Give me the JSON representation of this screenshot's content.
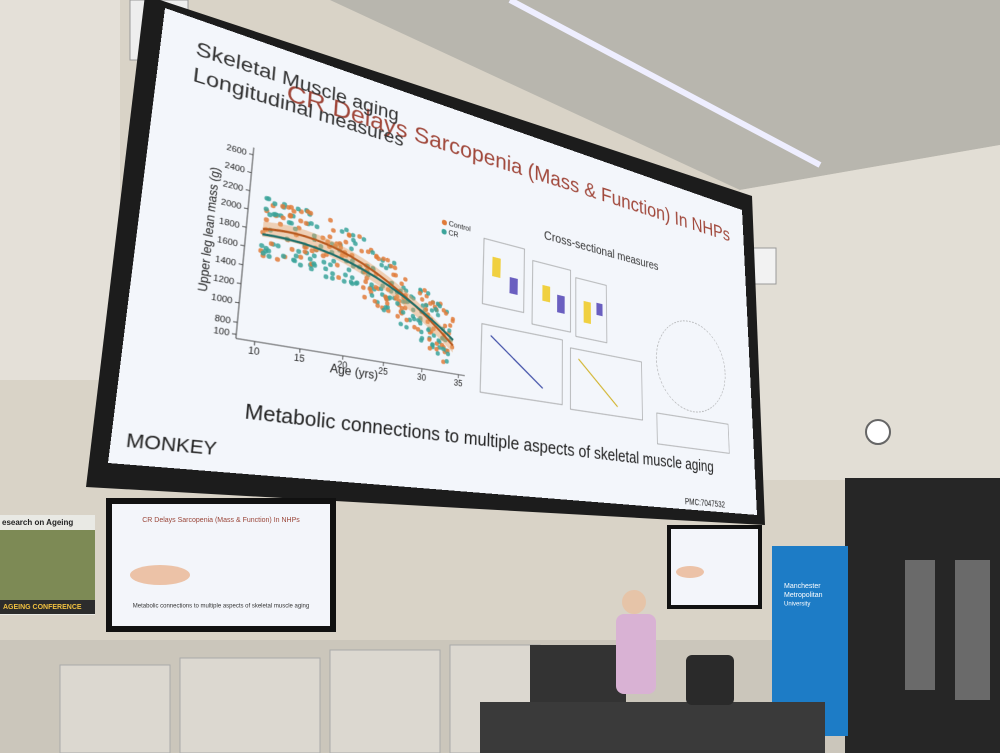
{
  "slide": {
    "title": "CR Delays Sarcopenia (Mass & Function) In NHPs",
    "heading": [
      "Skeletal Muscle aging",
      "Longitudinal measures"
    ],
    "subheading": "Cross-sectional measures",
    "caption": "Metabolic connections to multiple aspects of skeletal muscle aging",
    "label": "MONKEY",
    "reference": "PMC:7047532",
    "chart": {
      "x_label": "Age (yrs)",
      "y_label": "Upper leg lean mass (g)",
      "legend": [
        "Control",
        "CR"
      ],
      "xticks": [
        10,
        15,
        20,
        25,
        30,
        35
      ],
      "yticks": [
        100,
        800,
        1000,
        1200,
        1400,
        1600,
        1800,
        2000,
        2200,
        2400,
        2600
      ]
    }
  },
  "banner": {
    "lines": [
      "Manchester",
      "Metropolitan",
      "University"
    ]
  },
  "poster": {
    "lines": [
      "esearch on Ageing",
      "AGEING CONFERENCE"
    ]
  }
}
